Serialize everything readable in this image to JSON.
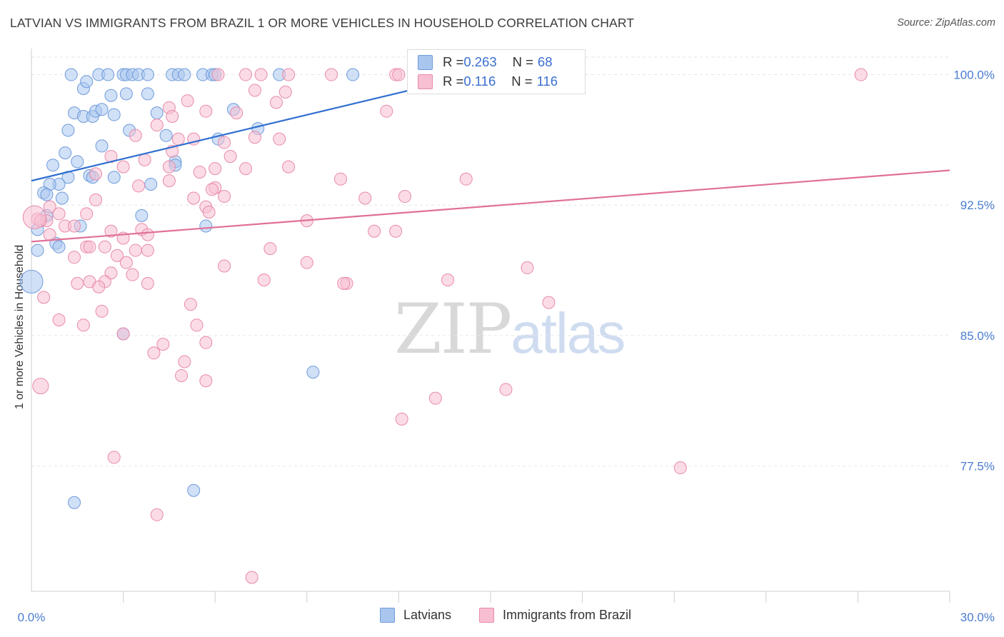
{
  "title": "LATVIAN VS IMMIGRANTS FROM BRAZIL 1 OR MORE VEHICLES IN HOUSEHOLD CORRELATION CHART",
  "source": "Source: ZipAtlas.com",
  "watermark": {
    "zip": "ZIP",
    "atlas": "atlas"
  },
  "legend": {
    "rows": [
      {
        "r_label": "R = ",
        "r_value": "0.263",
        "n_label": "N = ",
        "n_value": "68",
        "color": "#a9c6ee",
        "stroke": "#6f9bdc"
      },
      {
        "r_label": "R = ",
        "r_value": "0.116",
        "n_label": "N = ",
        "n_value": "116",
        "color": "#f7bfd1",
        "stroke": "#e88aa9"
      }
    ]
  },
  "bottom_legend": [
    {
      "label": "Latvians",
      "color": "#a9c6ee",
      "stroke": "#6f9bdc"
    },
    {
      "label": "Immigrants from Brazil",
      "color": "#f7bfd1",
      "stroke": "#e88aa9"
    }
  ],
  "chart_data": {
    "type": "scatter",
    "title": "LATVIAN VS IMMIGRANTS FROM BRAZIL 1 OR MORE VEHICLES IN HOUSEHOLD CORRELATION CHART",
    "xlabel": "",
    "ylabel": "1 or more Vehicles in Household",
    "xlim": [
      0,
      30
    ],
    "ylim": [
      70.3,
      101.5
    ],
    "x_tick_labels": [
      {
        "value": 0,
        "label": "0.0%"
      },
      {
        "value": 30,
        "label": "30.0%"
      }
    ],
    "x_minor_ticks": [
      3,
      6,
      9,
      12,
      15,
      18,
      21,
      24,
      27,
      30
    ],
    "y_ticks": [
      {
        "value": 100,
        "label": "100.0%"
      },
      {
        "value": 92.5,
        "label": "92.5%"
      },
      {
        "value": 85,
        "label": "85.0%"
      },
      {
        "value": 77.5,
        "label": "77.5%"
      }
    ],
    "grid": true,
    "legend_position": "top-center",
    "series": [
      {
        "name": "Latvians",
        "color": "#6f9bdc",
        "fill": "#a9c6ee",
        "trend": {
          "x": [
            0,
            13.3
          ],
          "y": [
            93.9,
            99.5
          ],
          "color": "#2f6fd0"
        },
        "points": [
          [
            1.3,
            100
          ],
          [
            2.2,
            100
          ],
          [
            2.5,
            100
          ],
          [
            3.0,
            100
          ],
          [
            3.1,
            100
          ],
          [
            3.3,
            100
          ],
          [
            3.5,
            100
          ],
          [
            3.8,
            100
          ],
          [
            4.6,
            100
          ],
          [
            4.8,
            100
          ],
          [
            5.0,
            100
          ],
          [
            5.6,
            100
          ],
          [
            5.9,
            100
          ],
          [
            6.0,
            100
          ],
          [
            8.1,
            100
          ],
          [
            10.5,
            100
          ],
          [
            13.3,
            100
          ],
          [
            13.8,
            99.5
          ],
          [
            1.7,
            99.2
          ],
          [
            1.8,
            99.6
          ],
          [
            2.6,
            98.8
          ],
          [
            3.1,
            98.9
          ],
          [
            3.8,
            98.9
          ],
          [
            6.6,
            98.0
          ],
          [
            1.4,
            97.8
          ],
          [
            1.7,
            97.6
          ],
          [
            2.0,
            97.6
          ],
          [
            2.1,
            97.9
          ],
          [
            2.3,
            98.0
          ],
          [
            2.7,
            97.7
          ],
          [
            4.1,
            97.8
          ],
          [
            1.2,
            96.8
          ],
          [
            3.2,
            96.8
          ],
          [
            4.4,
            96.5
          ],
          [
            7.4,
            96.9
          ],
          [
            6.1,
            96.3
          ],
          [
            2.3,
            95.9
          ],
          [
            1.1,
            95.5
          ],
          [
            1.5,
            95.0
          ],
          [
            4.7,
            95.0
          ],
          [
            4.7,
            94.8
          ],
          [
            0.7,
            94.8
          ],
          [
            1.2,
            94.1
          ],
          [
            1.9,
            94.2
          ],
          [
            2.0,
            94.1
          ],
          [
            2.7,
            94.1
          ],
          [
            0.9,
            93.7
          ],
          [
            0.6,
            93.7
          ],
          [
            3.9,
            93.7
          ],
          [
            0.4,
            93.2
          ],
          [
            0.5,
            93.1
          ],
          [
            1.0,
            92.9
          ],
          [
            0.5,
            91.9
          ],
          [
            3.6,
            91.9
          ],
          [
            1.6,
            91.3
          ],
          [
            5.7,
            91.3
          ],
          [
            0.2,
            91.1
          ],
          [
            0.8,
            90.3
          ],
          [
            0.9,
            90.1
          ],
          [
            0.2,
            89.9
          ],
          [
            0.0,
            88.1
          ],
          [
            3.0,
            85.1
          ],
          [
            9.2,
            82.9
          ],
          [
            5.3,
            76.1
          ],
          [
            1.4,
            75.4
          ]
        ]
      },
      {
        "name": "Immigrants from Brazil",
        "color": "#e88aa9",
        "fill": "#f7bfd1",
        "trend": {
          "x": [
            0,
            30
          ],
          "y": [
            90.4,
            94.5
          ],
          "color": "#e0709a"
        },
        "points": [
          [
            6.1,
            100
          ],
          [
            7.0,
            100
          ],
          [
            7.5,
            100
          ],
          [
            8.4,
            100
          ],
          [
            9.8,
            100
          ],
          [
            11.9,
            100
          ],
          [
            12.0,
            100
          ],
          [
            12.9,
            100
          ],
          [
            13.2,
            100
          ],
          [
            16.5,
            100
          ],
          [
            27.1,
            100
          ],
          [
            7.3,
            99.1
          ],
          [
            8.3,
            99.0
          ],
          [
            5.1,
            98.5
          ],
          [
            8.0,
            98.4
          ],
          [
            4.5,
            98.1
          ],
          [
            5.7,
            97.9
          ],
          [
            6.7,
            97.8
          ],
          [
            11.6,
            97.9
          ],
          [
            4.6,
            97.6
          ],
          [
            5.3,
            96.3
          ],
          [
            4.1,
            97.1
          ],
          [
            4.8,
            96.3
          ],
          [
            7.3,
            96.4
          ],
          [
            8.1,
            96.3
          ],
          [
            6.3,
            96.1
          ],
          [
            3.4,
            96.5
          ],
          [
            4.6,
            95.6
          ],
          [
            6.5,
            95.3
          ],
          [
            2.6,
            95.3
          ],
          [
            3.7,
            95.1
          ],
          [
            4.5,
            94.7
          ],
          [
            6.0,
            94.6
          ],
          [
            3.0,
            94.7
          ],
          [
            2.1,
            94.3
          ],
          [
            5.5,
            94.4
          ],
          [
            7.0,
            94.6
          ],
          [
            8.4,
            94.7
          ],
          [
            10.1,
            94.0
          ],
          [
            14.2,
            94.0
          ],
          [
            4.5,
            93.9
          ],
          [
            3.5,
            93.6
          ],
          [
            6.0,
            93.5
          ],
          [
            5.9,
            93.4
          ],
          [
            6.3,
            93.0
          ],
          [
            5.3,
            92.9
          ],
          [
            12.2,
            93.0
          ],
          [
            2.1,
            92.8
          ],
          [
            10.9,
            92.9
          ],
          [
            5.7,
            92.4
          ],
          [
            5.8,
            92.1
          ],
          [
            0.6,
            92.4
          ],
          [
            0.9,
            92.0
          ],
          [
            0.2,
            91.7
          ],
          [
            0.5,
            91.6
          ],
          [
            0.3,
            91.6
          ],
          [
            1.8,
            92.0
          ],
          [
            1.1,
            91.3
          ],
          [
            1.4,
            91.3
          ],
          [
            2.6,
            91.0
          ],
          [
            3.6,
            91.1
          ],
          [
            3.8,
            90.8
          ],
          [
            3.0,
            90.6
          ],
          [
            9.0,
            91.6
          ],
          [
            11.2,
            91.0
          ],
          [
            11.9,
            91.0
          ],
          [
            0.6,
            90.8
          ],
          [
            1.8,
            90.1
          ],
          [
            1.9,
            90.1
          ],
          [
            2.4,
            90.1
          ],
          [
            3.4,
            89.9
          ],
          [
            3.8,
            89.9
          ],
          [
            7.8,
            90.0
          ],
          [
            1.4,
            89.5
          ],
          [
            2.8,
            89.6
          ],
          [
            3.1,
            89.2
          ],
          [
            9.0,
            89.2
          ],
          [
            6.3,
            89.0
          ],
          [
            16.2,
            88.9
          ],
          [
            2.6,
            88.6
          ],
          [
            3.3,
            88.5
          ],
          [
            1.5,
            88.0
          ],
          [
            1.9,
            88.1
          ],
          [
            2.4,
            88.1
          ],
          [
            3.8,
            88.0
          ],
          [
            7.6,
            88.2
          ],
          [
            10.3,
            88.0
          ],
          [
            10.2,
            88.0
          ],
          [
            13.6,
            88.2
          ],
          [
            2.2,
            87.8
          ],
          [
            0.4,
            87.2
          ],
          [
            16.9,
            86.9
          ],
          [
            5.2,
            86.8
          ],
          [
            2.3,
            86.4
          ],
          [
            0.9,
            85.9
          ],
          [
            1.7,
            85.6
          ],
          [
            5.4,
            85.6
          ],
          [
            3.0,
            85.1
          ],
          [
            5.7,
            84.6
          ],
          [
            4.3,
            84.5
          ],
          [
            4.0,
            84.0
          ],
          [
            5.0,
            83.5
          ],
          [
            4.9,
            82.7
          ],
          [
            5.7,
            82.4
          ],
          [
            0.3,
            82.1
          ],
          [
            15.5,
            81.9
          ],
          [
            13.2,
            81.4
          ],
          [
            12.1,
            80.2
          ],
          [
            2.7,
            78.0
          ],
          [
            21.2,
            77.4
          ],
          [
            4.1,
            74.7
          ],
          [
            7.2,
            71.1
          ],
          [
            0.1,
            91.8
          ]
        ]
      }
    ]
  }
}
